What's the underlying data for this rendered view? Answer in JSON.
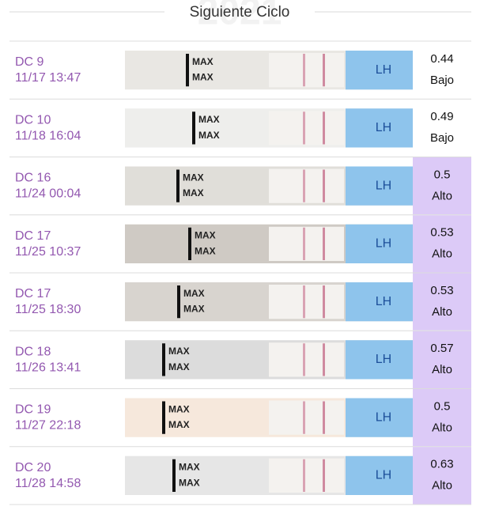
{
  "header": {
    "title": "Siguiente Ciclo",
    "watermark": "2021"
  },
  "strip_labels": {
    "max": "MAX",
    "brand": "LH"
  },
  "highlight_color": "#dccaf7",
  "rows": [
    {
      "day": "DC 9",
      "datetime": "11/17 13:47",
      "value": "0.44",
      "level": "Bajo",
      "highlight": false
    },
    {
      "day": "DC 10",
      "datetime": "11/18 16:04",
      "value": "0.49",
      "level": "Bajo",
      "highlight": false
    },
    {
      "day": "DC 16",
      "datetime": "11/24 00:04",
      "value": "0.5",
      "level": "Alto",
      "highlight": true
    },
    {
      "day": "DC 17",
      "datetime": "11/25 10:37",
      "value": "0.53",
      "level": "Alto",
      "highlight": true
    },
    {
      "day": "DC 17",
      "datetime": "11/25 18:30",
      "value": "0.53",
      "level": "Alto",
      "highlight": true
    },
    {
      "day": "DC 18",
      "datetime": "11/26 13:41",
      "value": "0.57",
      "level": "Alto",
      "highlight": true
    },
    {
      "day": "DC 19",
      "datetime": "11/27 22:18",
      "value": "0.5",
      "level": "Alto",
      "highlight": true
    },
    {
      "day": "DC 20",
      "datetime": "11/28 14:58",
      "value": "0.63",
      "level": "Alto",
      "highlight": true
    }
  ]
}
